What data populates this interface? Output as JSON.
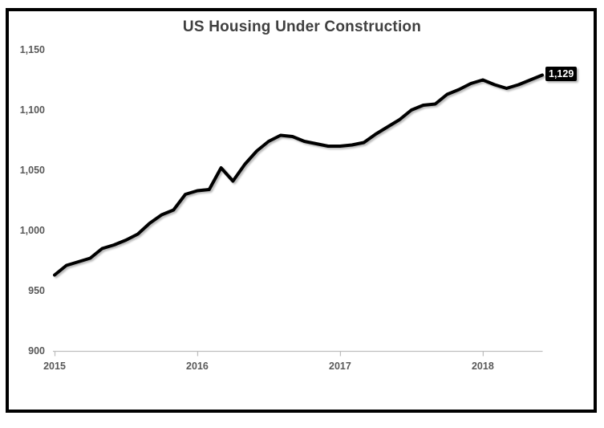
{
  "chart_data": {
    "type": "line",
    "title": "US Housing Under Construction",
    "x": [
      "2015-01",
      "2015-02",
      "2015-03",
      "2015-04",
      "2015-05",
      "2015-06",
      "2015-07",
      "2015-08",
      "2015-09",
      "2015-10",
      "2015-11",
      "2015-12",
      "2016-01",
      "2016-02",
      "2016-03",
      "2016-04",
      "2016-05",
      "2016-06",
      "2016-07",
      "2016-08",
      "2016-09",
      "2016-10",
      "2016-11",
      "2016-12",
      "2017-01",
      "2017-02",
      "2017-03",
      "2017-04",
      "2017-05",
      "2017-06",
      "2017-07",
      "2017-08",
      "2017-09",
      "2017-10",
      "2017-11",
      "2017-12",
      "2018-01",
      "2018-02",
      "2018-03",
      "2018-04",
      "2018-05",
      "2018-06"
    ],
    "values": [
      963,
      971,
      974,
      977,
      985,
      988,
      992,
      997,
      1006,
      1013,
      1017,
      1030,
      1033,
      1034,
      1052,
      1041,
      1055,
      1066,
      1074,
      1079,
      1078,
      1074,
      1072,
      1070,
      1070,
      1071,
      1073,
      1080,
      1086,
      1092,
      1100,
      1104,
      1105,
      1113,
      1117,
      1122,
      1125,
      1121,
      1118,
      1121,
      1125,
      1129
    ],
    "end_label": "1,129",
    "x_ticks": [
      {
        "label": "2015",
        "month_index": 0
      },
      {
        "label": "2016",
        "month_index": 12
      },
      {
        "label": "2017",
        "month_index": 24
      },
      {
        "label": "2018",
        "month_index": 36
      }
    ],
    "y_ticks": [
      {
        "label": "1,150",
        "value": 1150
      },
      {
        "label": "1,100",
        "value": 1100
      },
      {
        "label": "1,050",
        "value": 1050
      },
      {
        "label": "1,000",
        "value": 1000
      },
      {
        "label": "950",
        "value": 950
      },
      {
        "label": "900",
        "value": 900
      }
    ],
    "ylim": [
      900,
      1150
    ],
    "grid": "off",
    "legend": "none",
    "colors": {
      "line": "#000000",
      "axis": "#bfbfbf",
      "tick_label": "#595959",
      "title": "#404040",
      "label_box_bg": "#000000",
      "label_box_text": "#ffffff",
      "frame_border": "#000000",
      "background": "#ffffff"
    }
  }
}
